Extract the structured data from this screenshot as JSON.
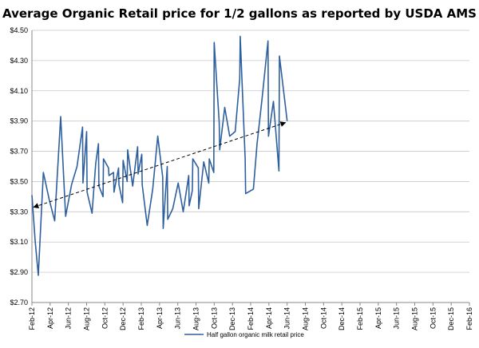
{
  "chart_data": {
    "type": "line",
    "title": "Average Organic Retail price for 1/2 gallons as reported by USDA AMS",
    "xlabel": "",
    "ylabel": "",
    "ylim": [
      2.7,
      4.5
    ],
    "y_ticks": [
      "$2.70",
      "$2.90",
      "$3.10",
      "$3.30",
      "$3.50",
      "$3.70",
      "$3.90",
      "$4.10",
      "$4.30",
      "$4.50"
    ],
    "x_ticks": [
      "Feb-12",
      "Apr-12",
      "Jun-12",
      "Aug-12",
      "Oct-12",
      "Dec-12",
      "Feb-13",
      "Apr-13",
      "Jun-13",
      "Aug-13",
      "Oct-13",
      "Dec-13",
      "Feb-14",
      "Apr-14",
      "Jun-14",
      "Aug-14",
      "Oct-14",
      "Dec-14",
      "Feb-15",
      "Apr-15",
      "Jun-15",
      "Aug-15",
      "Oct-15",
      "Dec-15",
      "Feb-16"
    ],
    "grid": true,
    "legend_position": "bottom",
    "series": [
      {
        "name": "Half gallon organic milk retail price",
        "color": "#2e5f9e",
        "points": [
          {
            "x": 0.0,
            "y": 3.41
          },
          {
            "x": 0.35,
            "y": 3.11
          },
          {
            "x": 0.7,
            "y": 2.88
          },
          {
            "x": 1.25,
            "y": 3.56
          },
          {
            "x": 1.9,
            "y": 3.38
          },
          {
            "x": 2.5,
            "y": 3.24
          },
          {
            "x": 3.15,
            "y": 3.93
          },
          {
            "x": 3.7,
            "y": 3.27
          },
          {
            "x": 4.35,
            "y": 3.48
          },
          {
            "x": 4.95,
            "y": 3.6
          },
          {
            "x": 5.55,
            "y": 3.86
          },
          {
            "x": 5.6,
            "y": 3.49
          },
          {
            "x": 6.0,
            "y": 3.83
          },
          {
            "x": 6.05,
            "y": 3.43
          },
          {
            "x": 6.6,
            "y": 3.29
          },
          {
            "x": 7.0,
            "y": 3.62
          },
          {
            "x": 7.3,
            "y": 3.75
          },
          {
            "x": 7.35,
            "y": 3.47
          },
          {
            "x": 7.8,
            "y": 3.4
          },
          {
            "x": 7.85,
            "y": 3.65
          },
          {
            "x": 8.4,
            "y": 3.59
          },
          {
            "x": 8.45,
            "y": 3.54
          },
          {
            "x": 8.95,
            "y": 3.56
          },
          {
            "x": 9.0,
            "y": 3.43
          },
          {
            "x": 9.5,
            "y": 3.59
          },
          {
            "x": 9.55,
            "y": 3.48
          },
          {
            "x": 9.95,
            "y": 3.36
          },
          {
            "x": 10.0,
            "y": 3.64
          },
          {
            "x": 10.45,
            "y": 3.5
          },
          {
            "x": 10.5,
            "y": 3.71
          },
          {
            "x": 11.05,
            "y": 3.47
          },
          {
            "x": 11.6,
            "y": 3.73
          },
          {
            "x": 11.65,
            "y": 3.55
          },
          {
            "x": 12.05,
            "y": 3.68
          },
          {
            "x": 12.1,
            "y": 3.48
          },
          {
            "x": 12.65,
            "y": 3.21
          },
          {
            "x": 13.25,
            "y": 3.45
          },
          {
            "x": 13.8,
            "y": 3.8
          },
          {
            "x": 14.35,
            "y": 3.53
          },
          {
            "x": 14.4,
            "y": 3.19
          },
          {
            "x": 14.85,
            "y": 3.6
          },
          {
            "x": 14.9,
            "y": 3.25
          },
          {
            "x": 15.45,
            "y": 3.32
          },
          {
            "x": 16.05,
            "y": 3.49
          },
          {
            "x": 16.6,
            "y": 3.3
          },
          {
            "x": 17.2,
            "y": 3.54
          },
          {
            "x": 17.25,
            "y": 3.34
          },
          {
            "x": 17.6,
            "y": 3.44
          },
          {
            "x": 17.65,
            "y": 3.65
          },
          {
            "x": 18.25,
            "y": 3.59
          },
          {
            "x": 18.3,
            "y": 3.32
          },
          {
            "x": 18.85,
            "y": 3.63
          },
          {
            "x": 19.4,
            "y": 3.49
          },
          {
            "x": 19.45,
            "y": 3.65
          },
          {
            "x": 19.95,
            "y": 3.56
          },
          {
            "x": 20.0,
            "y": 4.42
          },
          {
            "x": 20.55,
            "y": 3.89
          },
          {
            "x": 20.6,
            "y": 3.71
          },
          {
            "x": 21.15,
            "y": 3.99
          },
          {
            "x": 21.7,
            "y": 3.8
          },
          {
            "x": 22.3,
            "y": 3.83
          },
          {
            "x": 22.8,
            "y": 4.18
          },
          {
            "x": 22.85,
            "y": 4.46
          },
          {
            "x": 23.4,
            "y": 3.65
          },
          {
            "x": 23.45,
            "y": 3.42
          },
          {
            "x": 24.3,
            "y": 3.45
          },
          {
            "x": 24.7,
            "y": 3.75
          },
          {
            "x": 25.25,
            "y": 4.05
          },
          {
            "x": 25.9,
            "y": 4.43
          },
          {
            "x": 25.95,
            "y": 3.8
          },
          {
            "x": 26.5,
            "y": 4.03
          },
          {
            "x": 27.1,
            "y": 3.57
          },
          {
            "x": 27.15,
            "y": 4.33
          },
          {
            "x": 27.75,
            "y": 4.03
          },
          {
            "x": 28.0,
            "y": 3.9
          }
        ]
      }
    ],
    "trendline": {
      "style": "dashed",
      "arrows": "both",
      "start": {
        "x": 0.0,
        "y": 3.33
      },
      "end": {
        "x": 28.0,
        "y": 3.89
      }
    },
    "legend": {
      "label": "Half gallon organic milk retail price"
    }
  }
}
